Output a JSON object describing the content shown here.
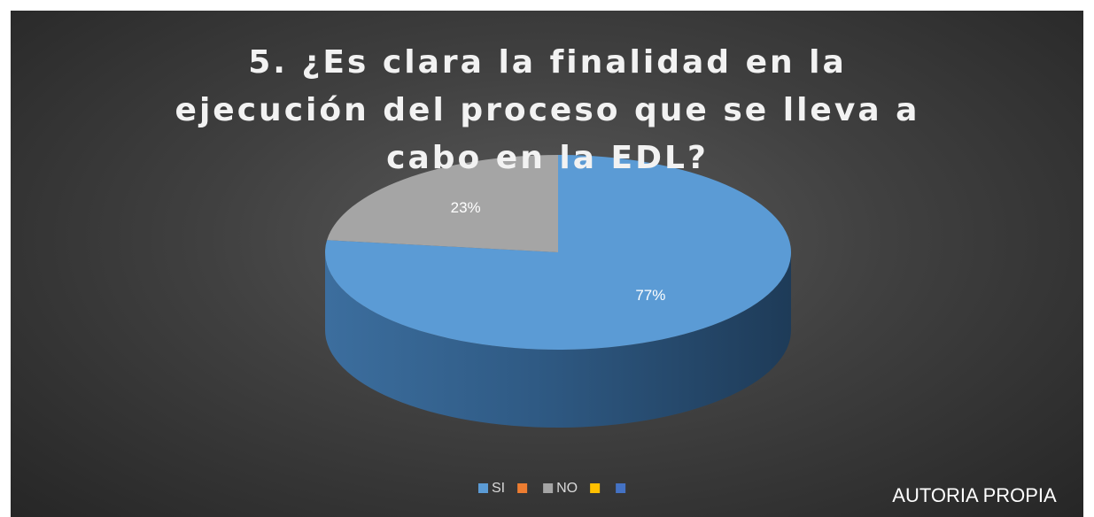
{
  "chart_data": {
    "type": "pie",
    "title": "5. ¿Es clara la finalidad en la ejecución del proceso que se lleva a cabo en la EDL?",
    "categories": [
      "SI",
      null,
      "NO",
      null,
      null
    ],
    "values": [
      77,
      0,
      23,
      0,
      0
    ],
    "value_labels": [
      "77%",
      null,
      "23%",
      null,
      null
    ],
    "colors": [
      "#5b9bd5",
      "#ed7d31",
      "#a5a5a5",
      "#ffc000",
      "#4472c4"
    ],
    "annotation": "AUTORIA PROPIA",
    "legend": "bottom"
  }
}
